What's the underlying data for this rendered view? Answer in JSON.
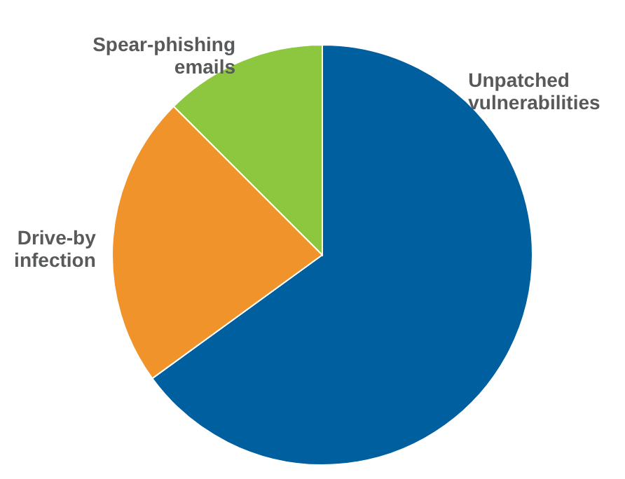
{
  "chart_data": {
    "type": "pie",
    "categories": [
      "Unpatched\nvulnerabilities",
      "Drive-by\ninfection",
      "Spear-phishing\nemails"
    ],
    "values": [
      65,
      22.5,
      12.5
    ],
    "colors": [
      "#005f9e",
      "#f0932b",
      "#8dc63f"
    ]
  }
}
